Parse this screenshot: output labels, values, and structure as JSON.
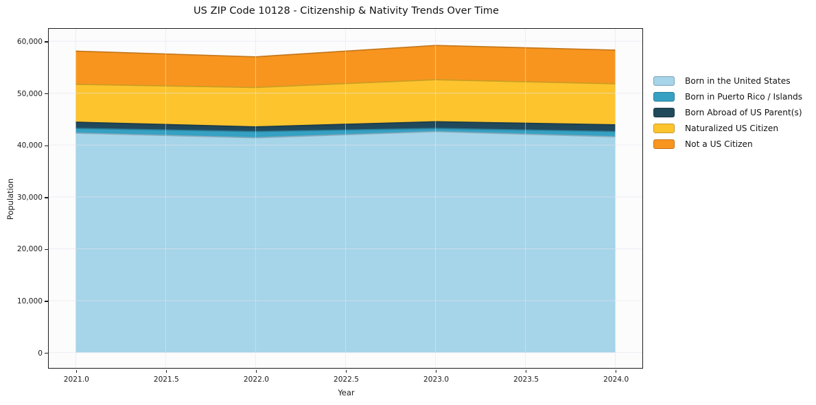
{
  "title": "US ZIP Code 10128 - Citizenship & Nativity Trends Over Time",
  "chart_data": {
    "type": "area",
    "stacked": true,
    "title": "US ZIP Code 10128 - Citizenship & Nativity Trends Over Time",
    "xlabel": "Year",
    "ylabel": "Population",
    "x": [
      2021,
      2022,
      2023,
      2024
    ],
    "series": [
      {
        "name": "Born in the United States",
        "color": "#a6d4e9",
        "values": [
          42300,
          41400,
          42600,
          41600
        ]
      },
      {
        "name": "Born in Puerto Rico / Islands",
        "color": "#36a1c3",
        "values": [
          900,
          1200,
          600,
          1000
        ]
      },
      {
        "name": "Born Abroad of US Parent(s)",
        "color": "#21495c",
        "values": [
          1200,
          900,
          1300,
          1300
        ]
      },
      {
        "name": "Naturalized US Citizen",
        "color": "#fdc42d",
        "values": [
          7300,
          7600,
          8100,
          7900
        ]
      },
      {
        "name": "Not a US Citizen",
        "color": "#f8951f",
        "values": [
          6400,
          5900,
          6600,
          6500
        ]
      }
    ],
    "totals": [
      58100,
      57000,
      59200,
      58300
    ],
    "xlim": [
      2020.85,
      2024.15
    ],
    "ylim": [
      -2960,
      62400
    ],
    "x_ticks": [
      {
        "value": 2021.0,
        "label": "2021.0"
      },
      {
        "value": 2021.5,
        "label": "2021.5"
      },
      {
        "value": 2022.0,
        "label": "2022.0"
      },
      {
        "value": 2022.5,
        "label": "2022.5"
      },
      {
        "value": 2023.0,
        "label": "2023.0"
      },
      {
        "value": 2023.5,
        "label": "2023.5"
      },
      {
        "value": 2024.0,
        "label": "2024.0"
      }
    ],
    "y_ticks": [
      {
        "value": 0,
        "label": "0"
      },
      {
        "value": 10000,
        "label": "10,000"
      },
      {
        "value": 20000,
        "label": "20,000"
      },
      {
        "value": 30000,
        "label": "30,000"
      },
      {
        "value": 40000,
        "label": "40,000"
      },
      {
        "value": 50000,
        "label": "50,000"
      },
      {
        "value": 60000,
        "label": "60,000"
      }
    ],
    "grid": true,
    "grid_color": "#e6e6ee",
    "axes_frame_color": "#1a1a1a",
    "plot_background": "#fcfcfd",
    "legend_position": "right"
  }
}
